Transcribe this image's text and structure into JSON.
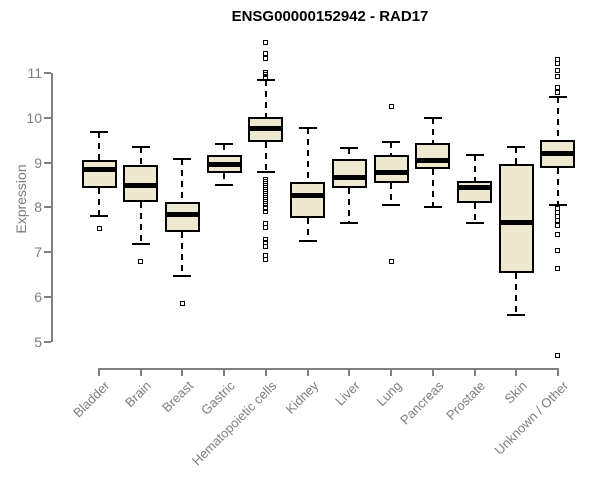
{
  "title": "ENSG00000152942 - RAD17",
  "colors": {
    "box_fill": "#EDE8CE",
    "box_border": "#000000",
    "axis": "#808080",
    "label_text": "#7E7E7E",
    "title_text": "#000000",
    "background": "#FFFFFF"
  },
  "chart_data": {
    "type": "boxplot",
    "title": "ENSG00000152942 - RAD17",
    "xlabel": "",
    "ylabel": "Expression",
    "ylim": [
      5,
      11
    ],
    "yticks": [
      5,
      6,
      7,
      8,
      9,
      10,
      11
    ],
    "grid": false,
    "legend": false,
    "categories": [
      "Bladder",
      "Brain",
      "Breast",
      "Gastric",
      "Hematopoietic cells",
      "Kidney",
      "Liver",
      "Lung",
      "Pancreas",
      "Prostate",
      "Skin",
      "Unknown / Other"
    ],
    "boxes": [
      {
        "label": "Bladder",
        "whisker_low": 7.82,
        "q1": 8.43,
        "median": 8.84,
        "q3": 9.06,
        "whisker_high": 9.69,
        "outliers": [
          7.54
        ]
      },
      {
        "label": "Brain",
        "whisker_low": 7.18,
        "q1": 8.12,
        "median": 8.48,
        "q3": 8.95,
        "whisker_high": 9.35,
        "outliers": [
          6.79
        ]
      },
      {
        "label": "Breast",
        "whisker_low": 6.47,
        "q1": 7.46,
        "median": 7.85,
        "q3": 8.12,
        "whisker_high": 9.08,
        "outliers": [
          5.85
        ]
      },
      {
        "label": "Gastric",
        "whisker_low": 8.5,
        "q1": 8.78,
        "median": 8.95,
        "q3": 9.16,
        "whisker_high": 9.42,
        "outliers": []
      },
      {
        "label": "Hematopoietic cells",
        "whisker_low": 8.8,
        "q1": 9.46,
        "median": 9.77,
        "q3": 10.02,
        "whisker_high": 10.85,
        "outliers": [
          11.69,
          11.43,
          11.32,
          11.02,
          10.97,
          10.91,
          8.62,
          8.57,
          8.53,
          8.48,
          8.44,
          8.4,
          8.36,
          8.31,
          8.27,
          8.22,
          8.18,
          8.13,
          8.09,
          7.98,
          7.91,
          7.64,
          7.56,
          7.28,
          7.21,
          7.13,
          6.94,
          6.83
        ]
      },
      {
        "label": "Kidney",
        "whisker_low": 7.25,
        "q1": 7.77,
        "median": 8.27,
        "q3": 8.57,
        "whisker_high": 9.77,
        "outliers": []
      },
      {
        "label": "Liver",
        "whisker_low": 7.65,
        "q1": 8.43,
        "median": 8.66,
        "q3": 9.08,
        "whisker_high": 9.33,
        "outliers": []
      },
      {
        "label": "Lung",
        "whisker_low": 8.06,
        "q1": 8.54,
        "median": 8.78,
        "q3": 9.17,
        "whisker_high": 9.46,
        "outliers": [
          10.25,
          6.79
        ]
      },
      {
        "label": "Pancreas",
        "whisker_low": 8.02,
        "q1": 8.86,
        "median": 9.04,
        "q3": 9.44,
        "whisker_high": 10.0,
        "outliers": []
      },
      {
        "label": "Prostate",
        "whisker_low": 7.66,
        "q1": 8.11,
        "median": 8.44,
        "q3": 8.6,
        "whisker_high": 9.16,
        "outliers": []
      },
      {
        "label": "Skin",
        "whisker_low": 5.6,
        "q1": 6.53,
        "median": 7.66,
        "q3": 8.97,
        "whisker_high": 9.35,
        "outliers": []
      },
      {
        "label": "Unknown / Other",
        "whisker_low": 8.06,
        "q1": 8.88,
        "median": 9.21,
        "q3": 9.5,
        "whisker_high": 10.46,
        "outliers": [
          11.31,
          11.22,
          11.05,
          10.93,
          10.68,
          10.57,
          7.97,
          7.89,
          7.8,
          7.7,
          7.6,
          7.4,
          7.05,
          6.64,
          4.71
        ]
      }
    ]
  }
}
